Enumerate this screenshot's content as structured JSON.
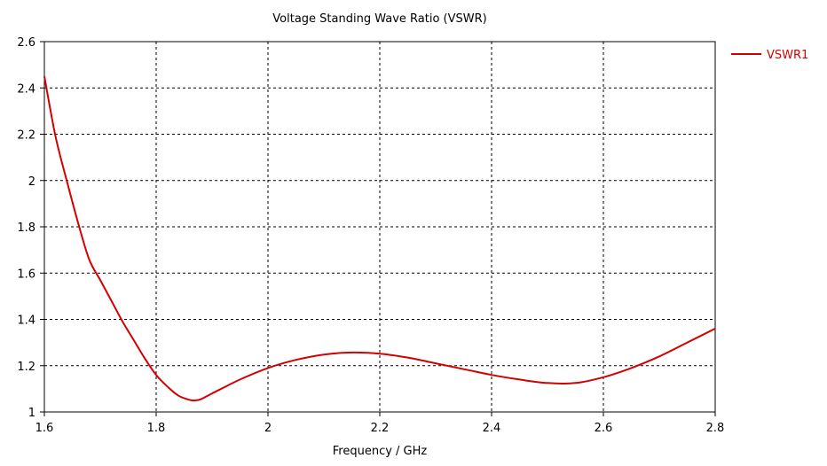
{
  "chart_data": {
    "type": "line",
    "title": "Voltage Standing Wave Ratio (VSWR)",
    "xlabel": "Frequency / GHz",
    "ylabel": "",
    "xlim": [
      1.6,
      2.8
    ],
    "ylim": [
      1,
      2.6
    ],
    "xticks": [
      "1.6",
      "1.8",
      "2",
      "2.2",
      "2.4",
      "2.6",
      "2.8"
    ],
    "yticks": [
      "1",
      "1.2",
      "1.4",
      "1.6",
      "1.8",
      "2",
      "2.2",
      "2.4",
      "2.6"
    ],
    "grid": true,
    "grid_style": "dashed",
    "legend_position": "right-top, outside",
    "series": [
      {
        "name": "VSWR1",
        "color": "#d40000",
        "x": [
          1.6,
          1.62,
          1.64,
          1.66,
          1.68,
          1.7,
          1.72,
          1.74,
          1.76,
          1.78,
          1.8,
          1.82,
          1.84,
          1.86,
          1.87,
          1.88,
          1.9,
          1.95,
          2.0,
          2.05,
          2.1,
          2.15,
          2.2,
          2.25,
          2.3,
          2.35,
          2.4,
          2.45,
          2.5,
          2.55,
          2.6,
          2.65,
          2.7,
          2.75,
          2.8
        ],
        "y": [
          2.45,
          2.19,
          2.0,
          1.82,
          1.66,
          1.57,
          1.48,
          1.39,
          1.31,
          1.23,
          1.16,
          1.11,
          1.07,
          1.052,
          1.05,
          1.055,
          1.08,
          1.14,
          1.19,
          1.225,
          1.248,
          1.257,
          1.252,
          1.235,
          1.21,
          1.185,
          1.16,
          1.14,
          1.125,
          1.125,
          1.15,
          1.19,
          1.24,
          1.3,
          1.36
        ]
      }
    ]
  }
}
